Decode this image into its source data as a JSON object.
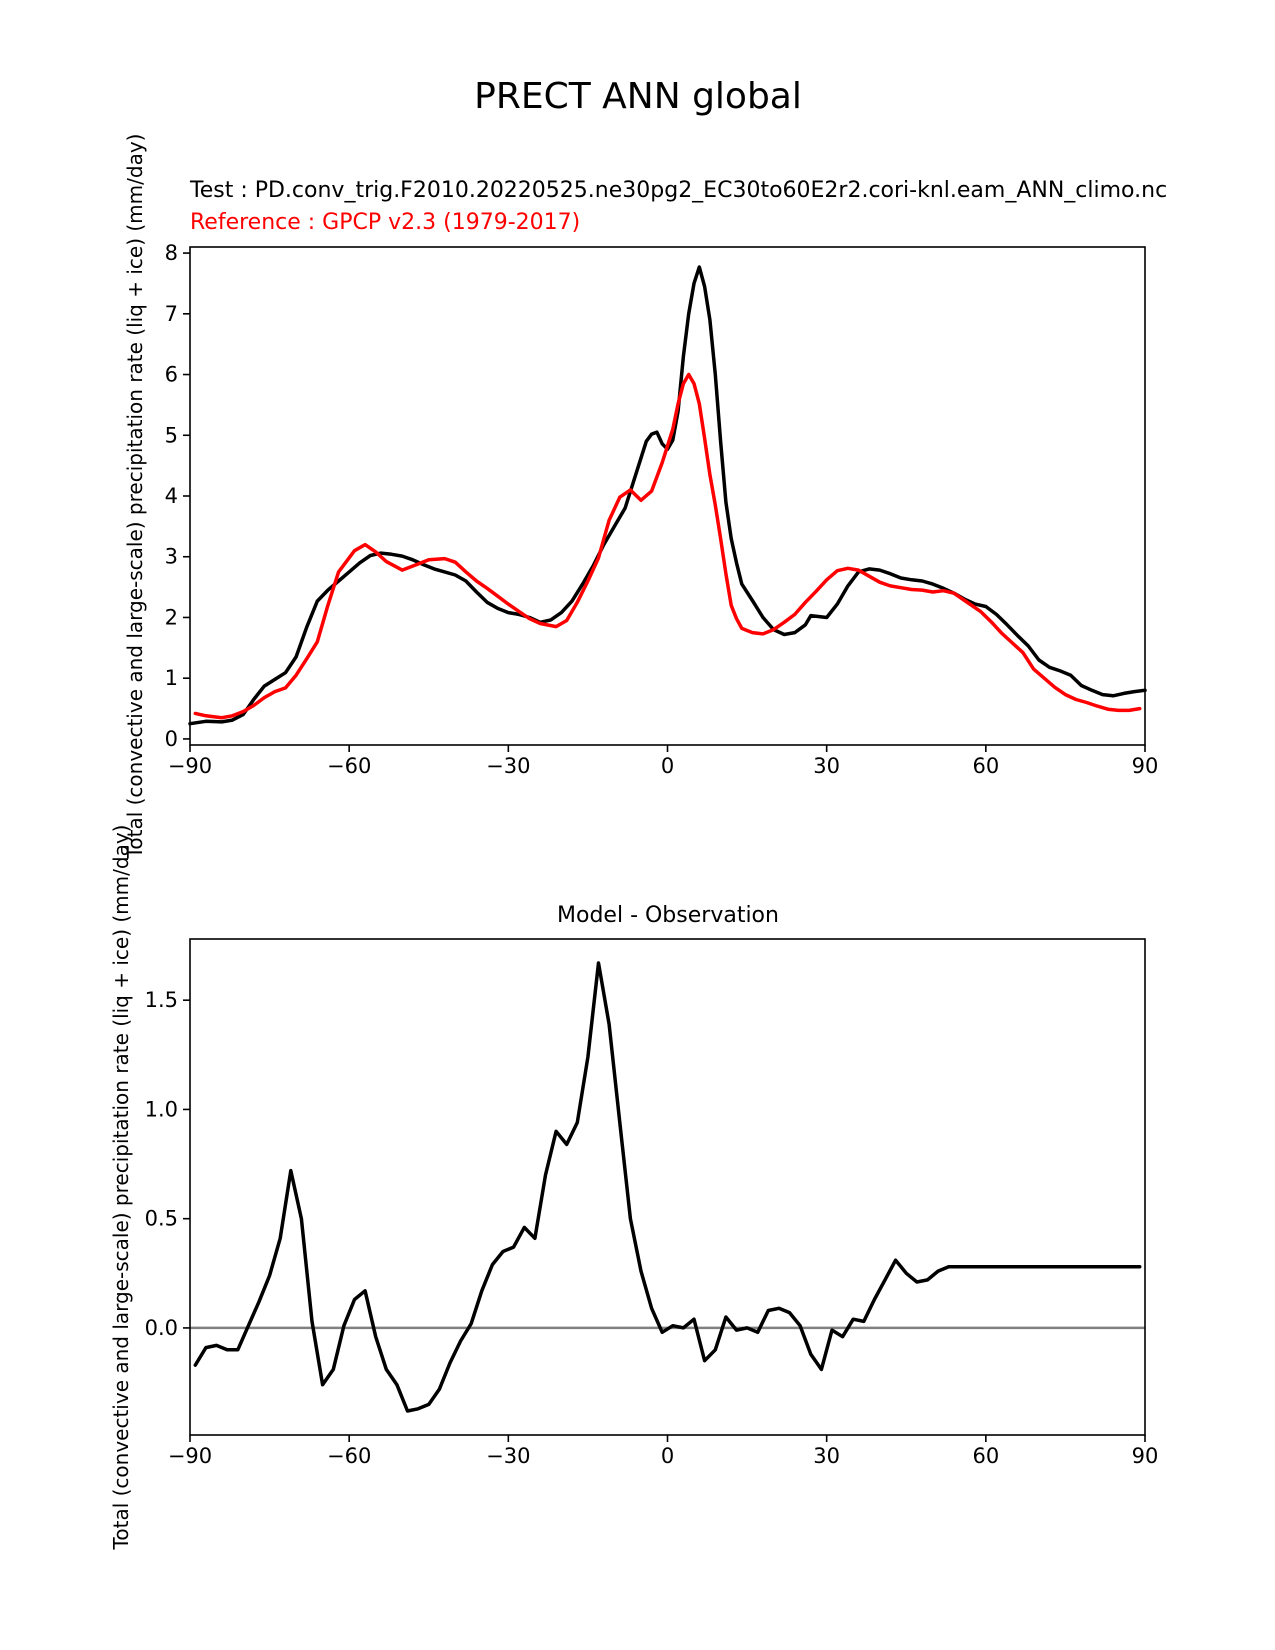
{
  "figure": {
    "title": "PRECT ANN global",
    "test_label": "Test : PD.conv_trig.F2010.20220525.ne30pg2_EC30to60E2r2.cori-knl.eam_ANN_climo.nc",
    "reference_label": "Reference : GPCP v2.3 (1979-2017)"
  },
  "colors": {
    "test": "#000000",
    "reference": "#ff0000",
    "zero_line": "#808080"
  },
  "chart_data": [
    {
      "type": "line",
      "title": "",
      "xlabel": "",
      "ylabel": "Total (convective and large-scale) precipitation rate (liq + ice) (mm/day)",
      "xlim": [
        -90,
        90
      ],
      "ylim": [
        -0.1,
        8.1
      ],
      "xticks": [
        -90,
        -60,
        -30,
        0,
        30,
        60,
        90
      ],
      "xtick_labels": [
        "−90",
        "−60",
        "−30",
        "0",
        "30",
        "60",
        "90"
      ],
      "yticks": [
        0,
        1,
        2,
        3,
        4,
        5,
        6,
        7,
        8
      ],
      "ytick_labels": [
        "0",
        "1",
        "2",
        "3",
        "4",
        "5",
        "6",
        "7",
        "8"
      ],
      "grid": false,
      "series": [
        {
          "name": "Test",
          "color": "#000000",
          "x": [
            -90,
            -87,
            -84,
            -82,
            -80,
            -78,
            -76,
            -74,
            -72,
            -70,
            -68,
            -66,
            -64,
            -62,
            -60,
            -58,
            -56,
            -54,
            -52,
            -50,
            -48,
            -46,
            -44,
            -42,
            -40,
            -38,
            -36,
            -34,
            -32,
            -30,
            -28,
            -26,
            -24,
            -22,
            -20,
            -18,
            -16,
            -14,
            -12,
            -10,
            -8,
            -6,
            -4,
            -3,
            -2,
            -1,
            0,
            1,
            2,
            3,
            4,
            5,
            6,
            7,
            8,
            9,
            10,
            11,
            12,
            13,
            14,
            16,
            18,
            20,
            22,
            24,
            26,
            27,
            28,
            30,
            32,
            34,
            36,
            38,
            40,
            42,
            44,
            46,
            48,
            50,
            52,
            54,
            56,
            58,
            60,
            62,
            64,
            66,
            68,
            70,
            72,
            74,
            76,
            78,
            80,
            82,
            84,
            86,
            88,
            90
          ],
          "y": [
            0.25,
            0.29,
            0.28,
            0.31,
            0.4,
            0.65,
            0.87,
            0.98,
            1.09,
            1.35,
            1.84,
            2.27,
            2.45,
            2.6,
            2.75,
            2.9,
            3.02,
            3.06,
            3.04,
            3.01,
            2.95,
            2.87,
            2.8,
            2.75,
            2.7,
            2.6,
            2.42,
            2.25,
            2.15,
            2.08,
            2.05,
            2.0,
            1.92,
            1.96,
            2.08,
            2.27,
            2.55,
            2.85,
            3.2,
            3.5,
            3.8,
            4.35,
            4.9,
            5.02,
            5.05,
            4.86,
            4.77,
            4.92,
            5.4,
            6.3,
            7.0,
            7.5,
            7.77,
            7.45,
            6.9,
            6.0,
            4.9,
            3.9,
            3.3,
            2.9,
            2.55,
            2.28,
            2.0,
            1.8,
            1.72,
            1.75,
            1.88,
            2.03,
            2.02,
            2.0,
            2.22,
            2.52,
            2.75,
            2.8,
            2.78,
            2.72,
            2.65,
            2.62,
            2.6,
            2.55,
            2.48,
            2.4,
            2.3,
            2.22,
            2.18,
            2.05,
            1.88,
            1.7,
            1.53,
            1.3,
            1.18,
            1.12,
            1.05,
            0.88,
            0.8,
            0.73,
            0.71,
            0.75,
            0.78,
            0.8
          ]
        },
        {
          "name": "Reference",
          "color": "#ff0000",
          "x": [
            -89,
            -87,
            -84,
            -82,
            -80,
            -78,
            -76,
            -74,
            -72,
            -70,
            -68,
            -66,
            -64,
            -62,
            -59,
            -57,
            -55,
            -53,
            -50,
            -47,
            -45,
            -42,
            -40,
            -38,
            -36,
            -34,
            -32,
            -30,
            -28,
            -26,
            -24,
            -21,
            -19,
            -17,
            -15,
            -13,
            -11,
            -9,
            -7,
            -5,
            -3,
            -1,
            1,
            2,
            3,
            4,
            5,
            6,
            7,
            8,
            9,
            10,
            11,
            12,
            13,
            14,
            16,
            18,
            20,
            22,
            24,
            26,
            28,
            30,
            32,
            34,
            36,
            38,
            40,
            42,
            44,
            46,
            48,
            50,
            52,
            54,
            56,
            59,
            61,
            63,
            65,
            67,
            69,
            71,
            73,
            75,
            77,
            79,
            81,
            83,
            85,
            87,
            89
          ],
          "y": [
            0.42,
            0.38,
            0.35,
            0.38,
            0.45,
            0.55,
            0.68,
            0.78,
            0.84,
            1.05,
            1.32,
            1.6,
            2.2,
            2.75,
            3.1,
            3.2,
            3.08,
            2.92,
            2.78,
            2.88,
            2.95,
            2.97,
            2.91,
            2.75,
            2.6,
            2.48,
            2.35,
            2.22,
            2.1,
            1.98,
            1.9,
            1.85,
            1.95,
            2.25,
            2.6,
            2.98,
            3.6,
            3.98,
            4.1,
            3.93,
            4.08,
            4.55,
            5.1,
            5.52,
            5.85,
            6.0,
            5.85,
            5.52,
            4.95,
            4.35,
            3.85,
            3.3,
            2.72,
            2.2,
            1.98,
            1.82,
            1.75,
            1.73,
            1.8,
            1.92,
            2.05,
            2.25,
            2.43,
            2.62,
            2.77,
            2.81,
            2.78,
            2.68,
            2.58,
            2.52,
            2.49,
            2.46,
            2.45,
            2.42,
            2.44,
            2.4,
            2.28,
            2.1,
            1.93,
            1.74,
            1.58,
            1.42,
            1.15,
            1.0,
            0.85,
            0.73,
            0.65,
            0.6,
            0.54,
            0.49,
            0.47,
            0.47,
            0.5
          ]
        }
      ]
    },
    {
      "type": "line",
      "title": "Model - Observation",
      "xlabel": "",
      "ylabel": "Total (convective and large-scale) precipitation rate (liq + ice) (mm/day)",
      "xlim": [
        -90,
        90
      ],
      "ylim": [
        -0.49,
        1.78
      ],
      "xticks": [
        -90,
        -60,
        -30,
        0,
        30,
        60,
        90
      ],
      "xtick_labels": [
        "−90",
        "−60",
        "−30",
        "0",
        "30",
        "60",
        "90"
      ],
      "yticks": [
        0.0,
        0.5,
        1.0,
        1.5
      ],
      "ytick_labels": [
        "0.0",
        "0.5",
        "1.0",
        "1.5"
      ],
      "grid": false,
      "zero_line": true,
      "series": [
        {
          "name": "Model - Observation",
          "color": "#000000",
          "x": [
            -89,
            -87,
            -85,
            -83,
            -81,
            -79,
            -77,
            -75,
            -73,
            -71,
            -69,
            -67,
            -65,
            -63,
            -61,
            -59,
            -57,
            -55,
            -53,
            -51,
            -49,
            -47,
            -45,
            -43,
            -41,
            -39,
            -37,
            -35,
            -33,
            -31,
            -29,
            -27,
            -25,
            -23,
            -21,
            -19,
            -17,
            -15,
            -13,
            -11,
            -9,
            -7,
            -5,
            -3,
            -1,
            1,
            3,
            5,
            7,
            9,
            11,
            13,
            15,
            17,
            19,
            21,
            23,
            25,
            27,
            29,
            31,
            33,
            35,
            37,
            39,
            41,
            43,
            45,
            47,
            49,
            51,
            53,
            55,
            57,
            59,
            61,
            63,
            65,
            67,
            69,
            71,
            73,
            75,
            77,
            79,
            81,
            83,
            85,
            87,
            89
          ],
          "y": [
            -0.17,
            -0.09,
            -0.08,
            -0.1,
            -0.1,
            0.01,
            0.12,
            0.24,
            0.41,
            0.72,
            0.5,
            0.03,
            -0.26,
            -0.19,
            0.01,
            0.13,
            0.17,
            -0.04,
            -0.19,
            -0.26,
            -0.38,
            -0.37,
            -0.35,
            -0.28,
            -0.16,
            -0.06,
            0.02,
            0.17,
            0.29,
            0.35,
            0.37,
            0.46,
            0.41,
            0.7,
            0.9,
            0.84,
            0.94,
            1.24,
            1.67,
            1.39,
            0.94,
            0.5,
            0.26,
            0.09,
            -0.02,
            0.01,
            0.0,
            0.04,
            -0.15,
            -0.1,
            0.05,
            -0.01,
            0.0,
            -0.02,
            0.08,
            0.09,
            0.07,
            0.01,
            -0.12,
            -0.19,
            -0.01,
            -0.04,
            0.04,
            0.03,
            0.13,
            0.22,
            0.31,
            0.25,
            0.21,
            0.22,
            0.26,
            0.28,
            0.28,
            0.28,
            0.28,
            0.28,
            0.28,
            0.28,
            0.28,
            0.28,
            0.28,
            0.28,
            0.28,
            0.28,
            0.28,
            0.28,
            0.28,
            0.28,
            0.28,
            0.28
          ]
        }
      ]
    }
  ]
}
